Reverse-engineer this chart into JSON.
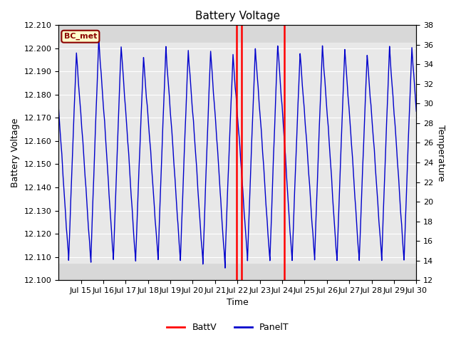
{
  "title": "Battery Voltage",
  "xlabel": "Time",
  "ylabel_left": "Battery Voltage",
  "ylabel_right": "Temperature",
  "xlim": [
    14.0,
    30.0
  ],
  "ylim_left": [
    12.1,
    12.21
  ],
  "ylim_right": [
    12,
    38
  ],
  "yticks_left": [
    12.1,
    12.11,
    12.12,
    12.13,
    12.14,
    12.15,
    12.16,
    12.17,
    12.18,
    12.19,
    12.2,
    12.21
  ],
  "yticks_right": [
    12,
    14,
    16,
    18,
    20,
    22,
    24,
    26,
    28,
    30,
    32,
    34,
    36,
    38
  ],
  "xticks": [
    15,
    16,
    17,
    18,
    19,
    20,
    21,
    22,
    23,
    24,
    25,
    26,
    27,
    28,
    29,
    30
  ],
  "xticklabels": [
    "Jul 15",
    "Jul 16",
    "Jul 17",
    "Jul 18",
    "Jul 19",
    "Jul 20",
    "Jul 21",
    "Jul 22",
    "Jul 23",
    "Jul 24",
    "Jul 25",
    "Jul 26",
    "Jul 27",
    "Jul 28",
    "Jul 29",
    "Jul 30"
  ],
  "station_label": "BC_met",
  "station_label_bg": "#ffffcc",
  "station_label_border": "#8B0000",
  "station_label_text_color": "#8B0000",
  "blue_line_color": "#0000cc",
  "red_line_color": "#ff0000",
  "background_color": "#ffffff",
  "plot_bg_color": "#d8d8d8",
  "shaded_region_color": "#e8e8e8",
  "shaded_ymin": 12.1075,
  "shaded_ymax": 12.2025,
  "red_vlines": [
    21.97,
    22.18,
    24.1
  ],
  "grid_color": "#ffffff",
  "title_fontsize": 11,
  "axis_label_fontsize": 9,
  "tick_fontsize": 8,
  "legend_fontsize": 9
}
